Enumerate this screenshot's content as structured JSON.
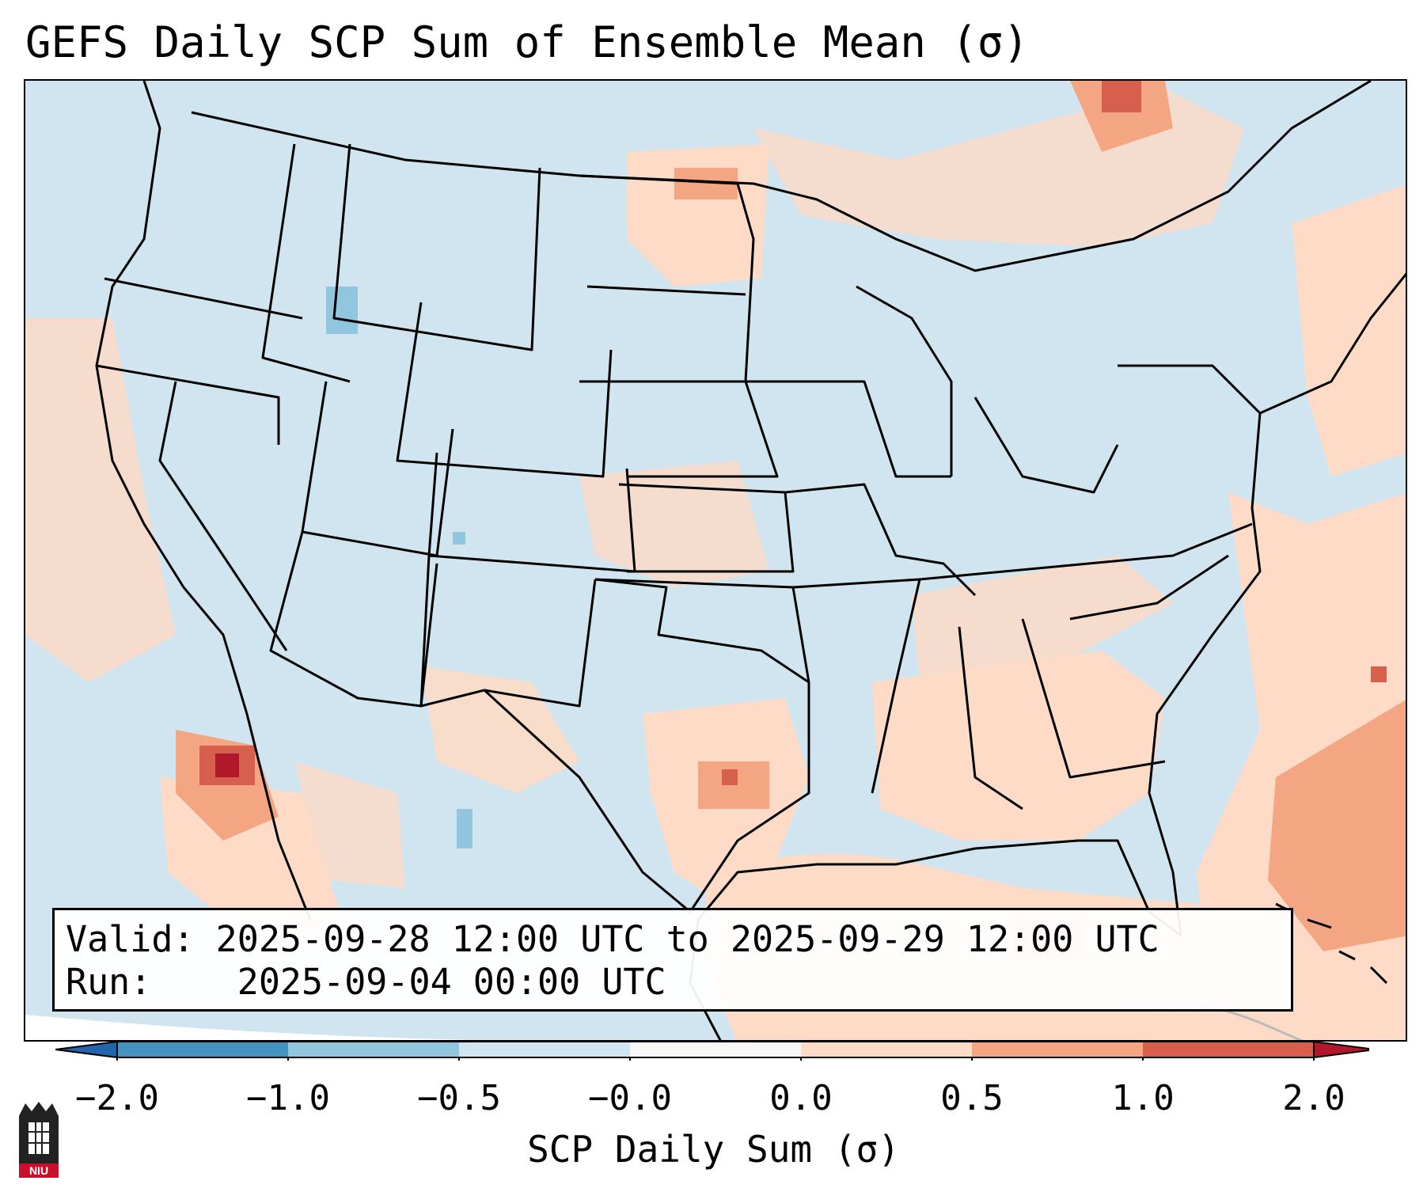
{
  "title": "GEFS Daily SCP Sum of Ensemble Mean (σ)",
  "info": {
    "valid_label": "Valid:",
    "valid_value": "2025-09-28 12:00 UTC to 2025-09-29 12:00 UTC",
    "run_label": "Run:",
    "run_value": "2025-09-04 00:00 UTC"
  },
  "colorbar": {
    "label": "SCP Daily Sum (σ)",
    "ticks": [
      "−2.0",
      "−1.0",
      "−0.5",
      "−0.0",
      "0.0",
      "0.5",
      "1.0",
      "2.0"
    ],
    "bins": [
      {
        "from": -2.0,
        "to": -1.0,
        "color": "#4393c3"
      },
      {
        "from": -1.0,
        "to": -0.5,
        "color": "#92c5de"
      },
      {
        "from": -0.5,
        "to": -0.0,
        "color": "#d1e5f0"
      },
      {
        "from": -0.0,
        "to": 0.0,
        "color": "#f7f7f7"
      },
      {
        "from": 0.0,
        "to": 0.5,
        "color": "#fddbc7"
      },
      {
        "from": 0.5,
        "to": 1.0,
        "color": "#f4a582"
      },
      {
        "from": 1.0,
        "to": 2.0,
        "color": "#d6604d"
      }
    ],
    "under_color": "#2166ac",
    "over_color": "#b2182b"
  },
  "map": {
    "region": "Contiguous United States",
    "background_category": "-0.5 to -0.0",
    "highlights": [
      {
        "area": "Gulf of California",
        "category": "1.0 to 2.0"
      },
      {
        "area": "Gulf of Mexico",
        "category": "0.0 to 0.5"
      },
      {
        "area": "Western Atlantic",
        "category": "0.5 to 1.0"
      },
      {
        "area": "Southern Great Plains",
        "category": "0.0 to 0.5"
      },
      {
        "area": "Northern Great Plains",
        "category": "0.0 to 0.5"
      },
      {
        "area": "Southeast US",
        "category": "0.0 to 0.5"
      },
      {
        "area": "Northern Rockies",
        "category": "-1.0 to -0.5"
      }
    ]
  },
  "logo": {
    "text": "NIU",
    "color": "#c8102e"
  }
}
